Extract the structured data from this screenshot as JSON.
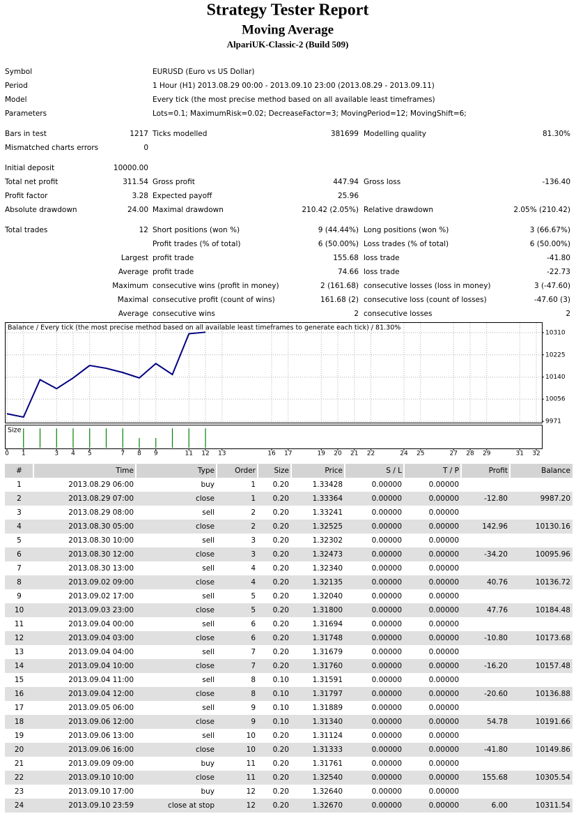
{
  "header": {
    "title": "Strategy Tester Report",
    "subtitle": "Moving Average",
    "server": "AlpariUK-Classic-2 (Build 509)"
  },
  "info": [
    [
      "Symbol",
      "EURUSD (Euro vs US Dollar)"
    ],
    [
      "Period",
      "1 Hour (H1) 2013.08.29 00:00 - 2013.09.10 23:00 (2013.08.29 - 2013.09.11)"
    ],
    [
      "Model",
      "Every tick (the most precise method based on all available least timeframes)"
    ],
    [
      "Parameters",
      "Lots=0.1; MaximumRisk=0.02; DecreaseFactor=3; MovingPeriod=12; MovingShift=6;"
    ]
  ],
  "stats": [
    [
      [
        "Bars in test",
        "1217",
        "Ticks modelled",
        "381699",
        "Modelling quality",
        "81.30%"
      ],
      [
        "Mismatched charts errors",
        "0",
        null,
        null,
        null,
        null
      ]
    ],
    [
      [
        "Initial deposit",
        "10000.00",
        null,
        null,
        null,
        null
      ],
      [
        "Total net profit",
        "311.54",
        "Gross profit",
        "447.94",
        "Gross loss",
        "-136.40"
      ],
      [
        "Profit factor",
        "3.28",
        "Expected payoff",
        "25.96",
        null,
        null
      ],
      [
        "Absolute drawdown",
        "24.00",
        "Maximal drawdown",
        "210.42 (2.05%)",
        "Relative drawdown",
        "2.05% (210.42)"
      ]
    ],
    [
      [
        "Total trades",
        "12",
        "Short positions (won %)",
        "9 (44.44%)",
        "Long positions (won %)",
        "3 (66.67%)"
      ],
      [
        null,
        null,
        "Profit trades (% of total)",
        "6 (50.00%)",
        "Loss trades (% of total)",
        "6 (50.00%)"
      ],
      [
        null,
        "Largest",
        "profit trade",
        "155.68",
        "loss trade",
        "-41.80"
      ],
      [
        null,
        "Average",
        "profit trade",
        "74.66",
        "loss trade",
        "-22.73"
      ],
      [
        null,
        "Maximum",
        "consecutive wins (profit in money)",
        "2 (161.68)",
        "consecutive losses (loss in money)",
        "3 (-47.60)"
      ],
      [
        null,
        "Maximal",
        "consecutive profit (count of wins)",
        "161.68 (2)",
        "consecutive loss (count of losses)",
        "-47.60 (3)"
      ],
      [
        null,
        "Average",
        "consecutive wins",
        "2",
        "consecutive losses",
        "2"
      ]
    ]
  ],
  "chart_data": {
    "type": "line",
    "title": "Balance / Every tick (the most precise method based on all available least timeframes to generate each tick) / 81.30%",
    "x": [
      0,
      1,
      2,
      3,
      4,
      5,
      6,
      7,
      8,
      9,
      10,
      11,
      12
    ],
    "values": [
      10000,
      9987.2,
      10130.16,
      10095.96,
      10136.72,
      10184.48,
      10173.68,
      10157.48,
      10136.88,
      10191.66,
      10149.86,
      10305.54,
      10311.54
    ],
    "color": "#000080",
    "xlim": [
      0,
      32
    ],
    "xticks": [
      0,
      1,
      3,
      4,
      5,
      7,
      8,
      9,
      11,
      12,
      13,
      16,
      17,
      19,
      20,
      21,
      22,
      24,
      25,
      27,
      28,
      29,
      31,
      32
    ],
    "ylim": [
      9966,
      10347
    ],
    "yticks": [
      10310,
      10225,
      10140,
      10056,
      9971
    ],
    "grid": true,
    "size": {
      "label": "Size",
      "x": [
        1,
        2,
        3,
        4,
        5,
        6,
        7,
        8,
        9,
        10,
        11,
        12
      ],
      "values": [
        0.2,
        0.2,
        0.2,
        0.2,
        0.2,
        0.2,
        0.2,
        0.1,
        0.1,
        0.2,
        0.2,
        0.2
      ],
      "ylim": [
        0,
        0.23
      ],
      "color": "#008000"
    }
  },
  "trades": {
    "columns": [
      "#",
      "Time",
      "Type",
      "Order",
      "Size",
      "Price",
      "S / L",
      "T / P",
      "Profit",
      "Balance"
    ],
    "rows": [
      [
        "1",
        "2013.08.29 06:00",
        "buy",
        "1",
        "0.20",
        "1.33428",
        "0.00000",
        "0.00000",
        null,
        null
      ],
      [
        "2",
        "2013.08.29 07:00",
        "close",
        "1",
        "0.20",
        "1.33364",
        "0.00000",
        "0.00000",
        "-12.80",
        "9987.20"
      ],
      [
        "3",
        "2013.08.29 08:00",
        "sell",
        "2",
        "0.20",
        "1.33241",
        "0.00000",
        "0.00000",
        null,
        null
      ],
      [
        "4",
        "2013.08.30 05:00",
        "close",
        "2",
        "0.20",
        "1.32525",
        "0.00000",
        "0.00000",
        "142.96",
        "10130.16"
      ],
      [
        "5",
        "2013.08.30 10:00",
        "sell",
        "3",
        "0.20",
        "1.32302",
        "0.00000",
        "0.00000",
        null,
        null
      ],
      [
        "6",
        "2013.08.30 12:00",
        "close",
        "3",
        "0.20",
        "1.32473",
        "0.00000",
        "0.00000",
        "-34.20",
        "10095.96"
      ],
      [
        "7",
        "2013.08.30 13:00",
        "sell",
        "4",
        "0.20",
        "1.32340",
        "0.00000",
        "0.00000",
        null,
        null
      ],
      [
        "8",
        "2013.09.02 09:00",
        "close",
        "4",
        "0.20",
        "1.32135",
        "0.00000",
        "0.00000",
        "40.76",
        "10136.72"
      ],
      [
        "9",
        "2013.09.02 17:00",
        "sell",
        "5",
        "0.20",
        "1.32040",
        "0.00000",
        "0.00000",
        null,
        null
      ],
      [
        "10",
        "2013.09.03 23:00",
        "close",
        "5",
        "0.20",
        "1.31800",
        "0.00000",
        "0.00000",
        "47.76",
        "10184.48"
      ],
      [
        "11",
        "2013.09.04 00:00",
        "sell",
        "6",
        "0.20",
        "1.31694",
        "0.00000",
        "0.00000",
        null,
        null
      ],
      [
        "12",
        "2013.09.04 03:00",
        "close",
        "6",
        "0.20",
        "1.31748",
        "0.00000",
        "0.00000",
        "-10.80",
        "10173.68"
      ],
      [
        "13",
        "2013.09.04 04:00",
        "sell",
        "7",
        "0.20",
        "1.31679",
        "0.00000",
        "0.00000",
        null,
        null
      ],
      [
        "14",
        "2013.09.04 10:00",
        "close",
        "7",
        "0.20",
        "1.31760",
        "0.00000",
        "0.00000",
        "-16.20",
        "10157.48"
      ],
      [
        "15",
        "2013.09.04 11:00",
        "sell",
        "8",
        "0.10",
        "1.31591",
        "0.00000",
        "0.00000",
        null,
        null
      ],
      [
        "16",
        "2013.09.04 12:00",
        "close",
        "8",
        "0.10",
        "1.31797",
        "0.00000",
        "0.00000",
        "-20.60",
        "10136.88"
      ],
      [
        "17",
        "2013.09.05 06:00",
        "sell",
        "9",
        "0.10",
        "1.31889",
        "0.00000",
        "0.00000",
        null,
        null
      ],
      [
        "18",
        "2013.09.06 12:00",
        "close",
        "9",
        "0.10",
        "1.31340",
        "0.00000",
        "0.00000",
        "54.78",
        "10191.66"
      ],
      [
        "19",
        "2013.09.06 13:00",
        "sell",
        "10",
        "0.20",
        "1.31124",
        "0.00000",
        "0.00000",
        null,
        null
      ],
      [
        "20",
        "2013.09.06 16:00",
        "close",
        "10",
        "0.20",
        "1.31333",
        "0.00000",
        "0.00000",
        "-41.80",
        "10149.86"
      ],
      [
        "21",
        "2013.09.09 09:00",
        "buy",
        "11",
        "0.20",
        "1.31761",
        "0.00000",
        "0.00000",
        null,
        null
      ],
      [
        "22",
        "2013.09.10 10:00",
        "close",
        "11",
        "0.20",
        "1.32540",
        "0.00000",
        "0.00000",
        "155.68",
        "10305.54"
      ],
      [
        "23",
        "2013.09.10 17:00",
        "buy",
        "12",
        "0.20",
        "1.32640",
        "0.00000",
        "0.00000",
        null,
        null
      ],
      [
        "24",
        "2013.09.10 23:59",
        "close at stop",
        "12",
        "0.20",
        "1.32670",
        "0.00000",
        "0.00000",
        "6.00",
        "10311.54"
      ]
    ]
  }
}
